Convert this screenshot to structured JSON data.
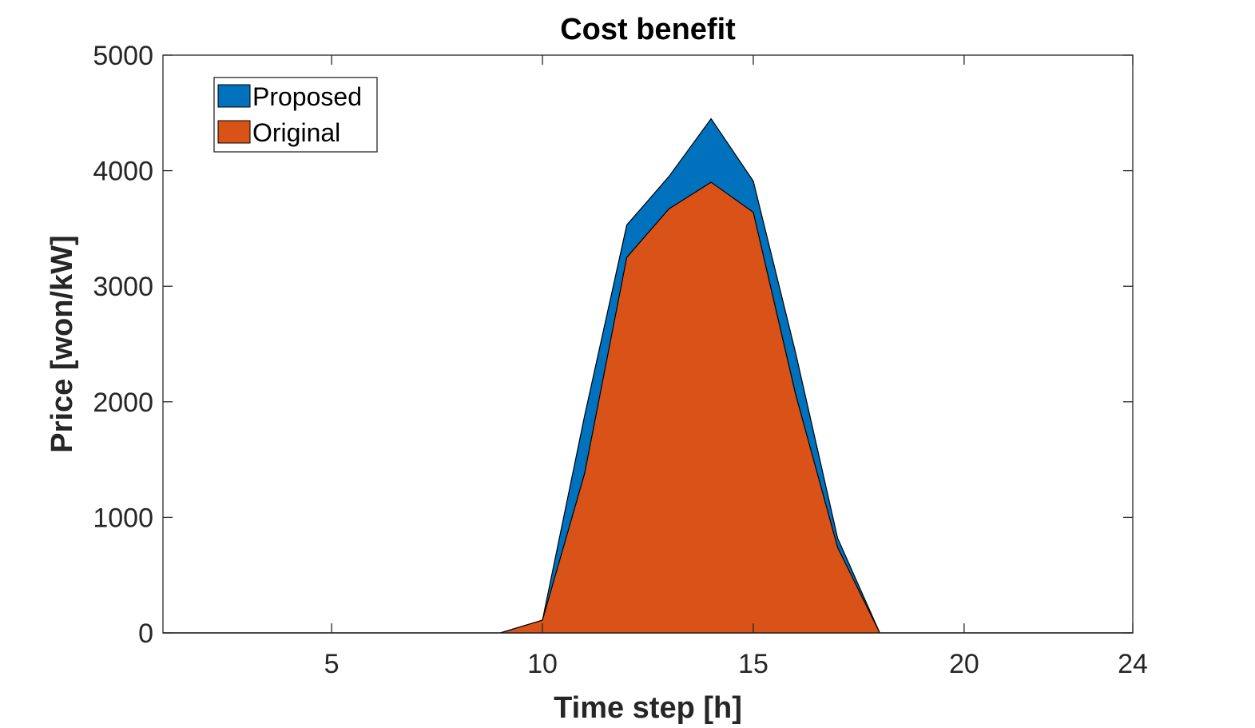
{
  "chart_data": {
    "type": "area",
    "title": "Cost benefit",
    "xlabel": "Time step [h]",
    "ylabel": "Price [won/kW]",
    "xlim": [
      1,
      24
    ],
    "ylim": [
      0,
      5000
    ],
    "xticks": [
      5,
      10,
      15,
      20,
      24
    ],
    "yticks": [
      0,
      1000,
      2000,
      3000,
      4000,
      5000
    ],
    "grid": false,
    "legend_position": "top-left",
    "stacked": false,
    "x": [
      1,
      2,
      3,
      4,
      5,
      6,
      7,
      8,
      9,
      10,
      11,
      12,
      13,
      14,
      15,
      16,
      17,
      18,
      19,
      20,
      21,
      22,
      23,
      24
    ],
    "series": [
      {
        "name": "Proposed",
        "color": "#0072BD",
        "values": [
          0,
          0,
          0,
          0,
          0,
          0,
          0,
          0,
          0,
          110,
          1880,
          3530,
          3950,
          4450,
          3910,
          2430,
          820,
          0,
          0,
          0,
          0,
          0,
          0,
          0
        ]
      },
      {
        "name": "Original",
        "color": "#D95319",
        "values": [
          0,
          0,
          0,
          0,
          0,
          0,
          0,
          0,
          0,
          110,
          1380,
          3250,
          3670,
          3900,
          3640,
          2070,
          740,
          0,
          0,
          0,
          0,
          0,
          0,
          0
        ]
      }
    ]
  }
}
